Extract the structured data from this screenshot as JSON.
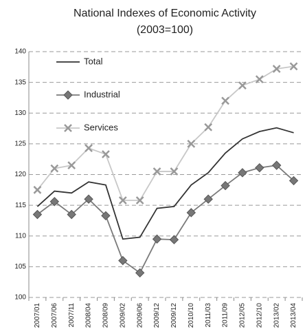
{
  "chart_data": {
    "type": "line",
    "title": "National Indexes of Economic Activity",
    "subtitle": "(2003=100)",
    "categories": [
      "2007/01",
      "2007/06",
      "2007/11",
      "2008/04",
      "2008/09",
      "2009/02",
      "2009/06",
      "2009/12",
      "2009/12",
      "2010/10",
      "2011/03",
      "2011/09",
      "2012/05",
      "2012/10",
      "2013/02",
      "2013/04"
    ],
    "series": [
      {
        "name": "Total",
        "color": "#333333",
        "marker": "none",
        "values": [
          114.8,
          117.3,
          117,
          118.8,
          118.3,
          109.5,
          109.8,
          114.5,
          114.8,
          118.3,
          120.3,
          123.5,
          125.8,
          127,
          127.6,
          126.8
        ]
      },
      {
        "name": "Industrial",
        "color": "#7a7a7a",
        "marker": "diamond",
        "values": [
          113.5,
          115.6,
          113.5,
          116,
          113.3,
          106,
          104,
          109.5,
          109.4,
          113.8,
          116,
          118.2,
          120.3,
          121.1,
          121.5,
          119
        ]
      },
      {
        "name": "Services",
        "color": "#c8c8c8",
        "marker": "x",
        "values": [
          117.5,
          121,
          121.5,
          124.3,
          123.3,
          115.8,
          115.8,
          120.5,
          120.5,
          125,
          127.7,
          132,
          134.5,
          135.5,
          137.2,
          137.6
        ]
      }
    ],
    "ylim": [
      100,
      140
    ],
    "yticks": [
      100,
      105,
      110,
      115,
      120,
      125,
      130,
      135,
      140
    ],
    "grid": true,
    "legend": "upper-left"
  }
}
